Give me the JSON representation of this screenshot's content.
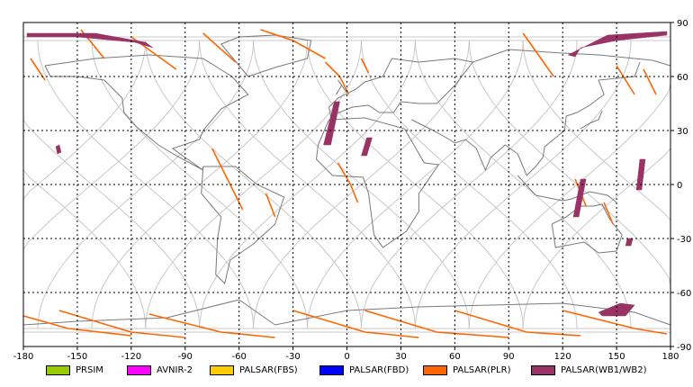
{
  "map": {
    "projection": "equirectangular",
    "lon_range": [
      -180,
      180
    ],
    "lat_range": [
      -90,
      90
    ],
    "grid": true,
    "x_ticks": [
      {
        "value": -180,
        "label": "-180"
      },
      {
        "value": -150,
        "label": "-150"
      },
      {
        "value": -120,
        "label": "-120"
      },
      {
        "value": -90,
        "label": "-90"
      },
      {
        "value": -60,
        "label": "-60"
      },
      {
        "value": -30,
        "label": "-30"
      },
      {
        "value": 0,
        "label": "0"
      },
      {
        "value": 30,
        "label": "30"
      },
      {
        "value": 60,
        "label": "60"
      },
      {
        "value": 90,
        "label": "90"
      },
      {
        "value": 120,
        "label": "120"
      },
      {
        "value": 150,
        "label": "150"
      },
      {
        "value": 180,
        "label": "180"
      }
    ],
    "y_ticks": [
      {
        "value": 90,
        "label": "90"
      },
      {
        "value": 60,
        "label": "60"
      },
      {
        "value": 30,
        "label": "30"
      },
      {
        "value": 0,
        "label": "0"
      },
      {
        "value": -30,
        "label": "-30"
      },
      {
        "value": -60,
        "label": "-60"
      },
      {
        "value": -90,
        "label": "-90"
      }
    ],
    "colors": {
      "grid": "#000000",
      "coast": "#7a7a7a",
      "orbit": "#c8c8c8",
      "plr": "#ff6600",
      "wb": "#993366"
    },
    "wb_swaths": [
      {
        "name": "arctic-west",
        "points": [
          [
            -178,
            84
          ],
          [
            -140,
            84
          ],
          [
            -112,
            79
          ],
          [
            -108,
            76
          ],
          [
            -118,
            79
          ],
          [
            -150,
            82
          ],
          [
            -178,
            82
          ]
        ]
      },
      {
        "name": "arctic-east",
        "points": [
          [
            123,
            72
          ],
          [
            145,
            83
          ],
          [
            178,
            85
          ],
          [
            178,
            83
          ],
          [
            150,
            80
          ],
          [
            130,
            76
          ],
          [
            127,
            71
          ]
        ]
      },
      {
        "name": "pacific-north",
        "points": [
          [
            -162,
            21
          ],
          [
            -160,
            22
          ],
          [
            -159,
            18
          ],
          [
            -161,
            17
          ]
        ]
      },
      {
        "name": "atlantic-west-africa",
        "points": [
          [
            -7,
            46
          ],
          [
            -4,
            46
          ],
          [
            -9,
            22
          ],
          [
            -13,
            22
          ]
        ]
      },
      {
        "name": "north-africa",
        "points": [
          [
            11,
            26
          ],
          [
            14,
            26
          ],
          [
            11,
            16
          ],
          [
            8,
            16
          ]
        ]
      },
      {
        "name": "australia-north",
        "points": [
          [
            130,
            3
          ],
          [
            133,
            3
          ],
          [
            129,
            -18
          ],
          [
            126,
            -18
          ]
        ]
      },
      {
        "name": "pacific-equator",
        "points": [
          [
            163,
            14
          ],
          [
            166,
            14
          ],
          [
            164,
            -3
          ],
          [
            161,
            -3
          ]
        ]
      },
      {
        "name": "south-pacific",
        "points": [
          [
            156,
            -30
          ],
          [
            159,
            -30
          ],
          [
            158,
            -34
          ],
          [
            155,
            -34
          ]
        ]
      },
      {
        "name": "antarctic",
        "points": [
          [
            140,
            -71
          ],
          [
            152,
            -66
          ],
          [
            160,
            -67
          ],
          [
            155,
            -73
          ],
          [
            142,
            -73
          ]
        ]
      }
    ],
    "plr_tracks": [
      {
        "points": [
          [
            -176,
            70
          ],
          [
            -168,
            58
          ]
        ]
      },
      {
        "points": [
          [
            -148,
            86
          ],
          [
            -135,
            70
          ]
        ]
      },
      {
        "points": [
          [
            -120,
            82
          ],
          [
            -95,
            64
          ]
        ]
      },
      {
        "points": [
          [
            -80,
            84
          ],
          [
            -62,
            68
          ]
        ]
      },
      {
        "points": [
          [
            -48,
            86
          ],
          [
            -30,
            80
          ],
          [
            -12,
            70
          ]
        ]
      },
      {
        "points": [
          [
            -12,
            68
          ],
          [
            -4,
            60
          ],
          [
            1,
            50
          ]
        ]
      },
      {
        "points": [
          [
            8,
            70
          ],
          [
            12,
            62
          ]
        ]
      },
      {
        "points": [
          [
            -5,
            12
          ],
          [
            2,
            0
          ],
          [
            6,
            -10
          ]
        ]
      },
      {
        "points": [
          [
            -75,
            20
          ],
          [
            -58,
            -14
          ]
        ]
      },
      {
        "points": [
          [
            -45,
            -5
          ],
          [
            -40,
            -18
          ]
        ]
      },
      {
        "points": [
          [
            98,
            84
          ],
          [
            115,
            60
          ]
        ]
      },
      {
        "points": [
          [
            150,
            66
          ],
          [
            160,
            50
          ]
        ]
      },
      {
        "points": [
          [
            165,
            64
          ],
          [
            172,
            50
          ]
        ]
      },
      {
        "points": [
          [
            127,
            3
          ],
          [
            133,
            -12
          ]
        ]
      },
      {
        "points": [
          [
            143,
            -10
          ],
          [
            148,
            -22
          ]
        ]
      },
      {
        "points": [
          [
            -180,
            -73
          ],
          [
            -155,
            -80
          ],
          [
            -120,
            -84
          ]
        ]
      },
      {
        "points": [
          [
            -160,
            -70
          ],
          [
            -120,
            -82
          ],
          [
            -90,
            -85
          ]
        ]
      },
      {
        "points": [
          [
            -110,
            -72
          ],
          [
            -70,
            -82
          ],
          [
            -40,
            -85
          ]
        ]
      },
      {
        "points": [
          [
            -30,
            -70
          ],
          [
            10,
            -82
          ],
          [
            40,
            -85
          ]
        ]
      },
      {
        "points": [
          [
            10,
            -70
          ],
          [
            50,
            -82
          ],
          [
            90,
            -85
          ]
        ]
      },
      {
        "points": [
          [
            60,
            -70
          ],
          [
            100,
            -82
          ],
          [
            130,
            -84
          ]
        ]
      },
      {
        "points": [
          [
            120,
            -70
          ],
          [
            160,
            -80
          ],
          [
            178,
            -83
          ]
        ]
      }
    ]
  },
  "legend": [
    {
      "name": "legend-prsim",
      "label": "PRSIM",
      "color": "#99cc00"
    },
    {
      "name": "legend-avnir2",
      "label": "AVNIR-2",
      "color": "#ff00ff"
    },
    {
      "name": "legend-palsar-fbs",
      "label": "PALSAR(FBS)",
      "color": "#ffcc00"
    },
    {
      "name": "legend-palsar-fbd",
      "label": "PALSAR(FBD)",
      "color": "#0000ff"
    },
    {
      "name": "legend-palsar-plr",
      "label": "PALSAR(PLR)",
      "color": "#ff6600"
    },
    {
      "name": "legend-palsar-wb",
      "label": "PALSAR(WB1/WB2)",
      "color": "#993366"
    }
  ]
}
